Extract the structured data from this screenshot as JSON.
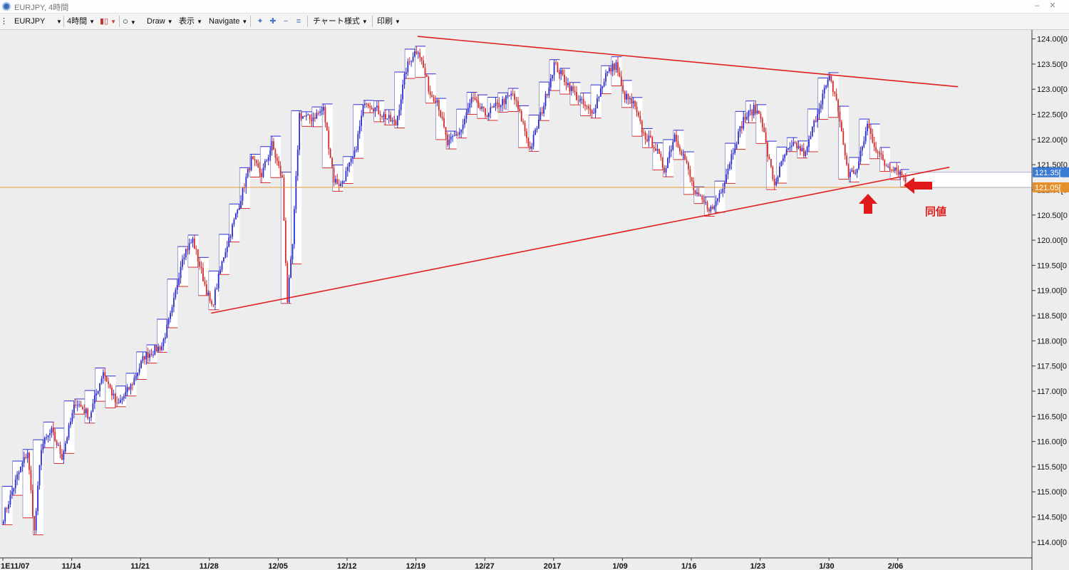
{
  "window": {
    "title": "EURJPY, 4時間"
  },
  "toolbar": {
    "symbol": "EURJPY",
    "timeframe": "4時間",
    "draw": "Draw",
    "view": "表示",
    "navigate": "Navigate",
    "chart_style": "チャート様式",
    "print": "印刷",
    "icons": [
      "candle-type-icon",
      "circle-tool-icon",
      "crosshair-icon",
      "zoom-in-icon",
      "zoom-out-icon",
      "fit-icon"
    ]
  },
  "annotation": {
    "label": "同値",
    "color": "#e01a1a"
  },
  "colors": {
    "bull": "#2b2bd4",
    "bear": "#d42b2b",
    "trendline": "#e02020",
    "price_line": "#e59a3a",
    "bid_box": "#3a7bd5",
    "ask_box": "#e5902a"
  },
  "chart_data": {
    "type": "candlestick",
    "symbol": "EURJPY",
    "timeframe": "4時間",
    "y_axis": {
      "min": 113.8,
      "max": 124.15,
      "ticks": [
        "124.00[0",
        "123.50[0",
        "123.00[0",
        "122.50[0",
        "122.00[0",
        "121.50[0",
        "121.00[0",
        "120.50[0",
        "120.00[0",
        "119.50[0",
        "119.00[0",
        "118.50[0",
        "118.00[0",
        "117.50[0",
        "117.00[0",
        "116.50[0",
        "116.00[0",
        "115.50[0",
        "115.00[0",
        "114.50[0",
        "114.00[0"
      ],
      "tick_values": [
        124,
        123.5,
        123,
        122.5,
        122,
        121.5,
        121,
        120.5,
        120,
        119.5,
        119,
        118.5,
        118,
        117.5,
        117,
        116.5,
        116,
        115.5,
        115,
        114.5,
        114
      ]
    },
    "x_axis": {
      "labels": [
        "1E11/07",
        "11/14",
        "11/21",
        "11/28",
        "12/05",
        "12/12",
        "12/19",
        "12/27",
        "2017",
        "1/09",
        "1/16",
        "1/23",
        "1/30",
        "2/06"
      ],
      "positions": [
        0,
        40,
        80,
        120,
        160,
        200,
        240,
        280,
        320,
        360,
        400,
        440,
        480,
        520
      ]
    },
    "waypoints": [
      [
        0,
        114.5
      ],
      [
        8,
        115.3
      ],
      [
        14,
        115.8
      ],
      [
        18,
        114.2
      ],
      [
        22,
        115.9
      ],
      [
        28,
        116.2
      ],
      [
        34,
        115.7
      ],
      [
        42,
        116.8
      ],
      [
        50,
        116.5
      ],
      [
        58,
        117.4
      ],
      [
        66,
        116.7
      ],
      [
        74,
        117.1
      ],
      [
        82,
        117.7
      ],
      [
        92,
        117.9
      ],
      [
        98,
        118.6
      ],
      [
        104,
        119.7
      ],
      [
        110,
        120.0
      ],
      [
        118,
        119.0
      ],
      [
        121,
        118.65
      ],
      [
        128,
        119.7
      ],
      [
        136,
        120.6
      ],
      [
        144,
        121.6
      ],
      [
        150,
        121.3
      ],
      [
        156,
        121.9
      ],
      [
        162,
        121.2
      ],
      [
        165,
        118.8
      ],
      [
        168,
        119.9
      ],
      [
        172,
        122.5
      ],
      [
        178,
        122.4
      ],
      [
        186,
        122.6
      ],
      [
        192,
        121.2
      ],
      [
        196,
        121.1
      ],
      [
        204,
        121.7
      ],
      [
        210,
        122.8
      ],
      [
        220,
        122.5
      ],
      [
        228,
        122.3
      ],
      [
        234,
        123.4
      ],
      [
        238,
        123.7
      ],
      [
        241,
        123.8
      ],
      [
        248,
        122.9
      ],
      [
        252,
        122.8
      ],
      [
        258,
        121.9
      ],
      [
        266,
        122.2
      ],
      [
        272,
        122.8
      ],
      [
        280,
        122.5
      ],
      [
        288,
        122.7
      ],
      [
        296,
        122.9
      ],
      [
        302,
        122.3
      ],
      [
        306,
        121.8
      ],
      [
        314,
        122.7
      ],
      [
        320,
        123.5
      ],
      [
        326,
        123.2
      ],
      [
        334,
        122.8
      ],
      [
        342,
        122.5
      ],
      [
        350,
        123.3
      ],
      [
        356,
        123.5
      ],
      [
        360,
        122.9
      ],
      [
        366,
        122.7
      ],
      [
        372,
        122.1
      ],
      [
        378,
        121.9
      ],
      [
        384,
        121.4
      ],
      [
        390,
        122.1
      ],
      [
        396,
        121.6
      ],
      [
        402,
        120.9
      ],
      [
        408,
        120.7
      ],
      [
        412,
        120.6
      ],
      [
        418,
        121.1
      ],
      [
        424,
        121.8
      ],
      [
        430,
        122.4
      ],
      [
        436,
        122.6
      ],
      [
        440,
        122.5
      ],
      [
        444,
        121.7
      ],
      [
        448,
        121.1
      ],
      [
        454,
        121.7
      ],
      [
        460,
        121.9
      ],
      [
        466,
        121.7
      ],
      [
        470,
        122.2
      ],
      [
        476,
        122.9
      ],
      [
        480,
        123.2
      ],
      [
        484,
        122.8
      ],
      [
        488,
        121.9
      ],
      [
        491,
        121.3
      ],
      [
        496,
        121.4
      ],
      [
        502,
        122.3
      ],
      [
        506,
        121.9
      ],
      [
        512,
        121.5
      ],
      [
        518,
        121.45
      ],
      [
        522,
        121.3
      ],
      [
        526,
        121.15
      ]
    ],
    "trendlines": [
      {
        "name": "upper",
        "from": [
          241,
          124.05
        ],
        "to": [
          555,
          123.05
        ]
      },
      {
        "name": "lower",
        "from": [
          121,
          118.55
        ],
        "to": [
          550,
          121.45
        ]
      }
    ],
    "price_lines": {
      "bid": 121.35,
      "ask": 121.05,
      "bid_label": "121.35[",
      "ask_label": "121.05["
    },
    "grid": false
  }
}
